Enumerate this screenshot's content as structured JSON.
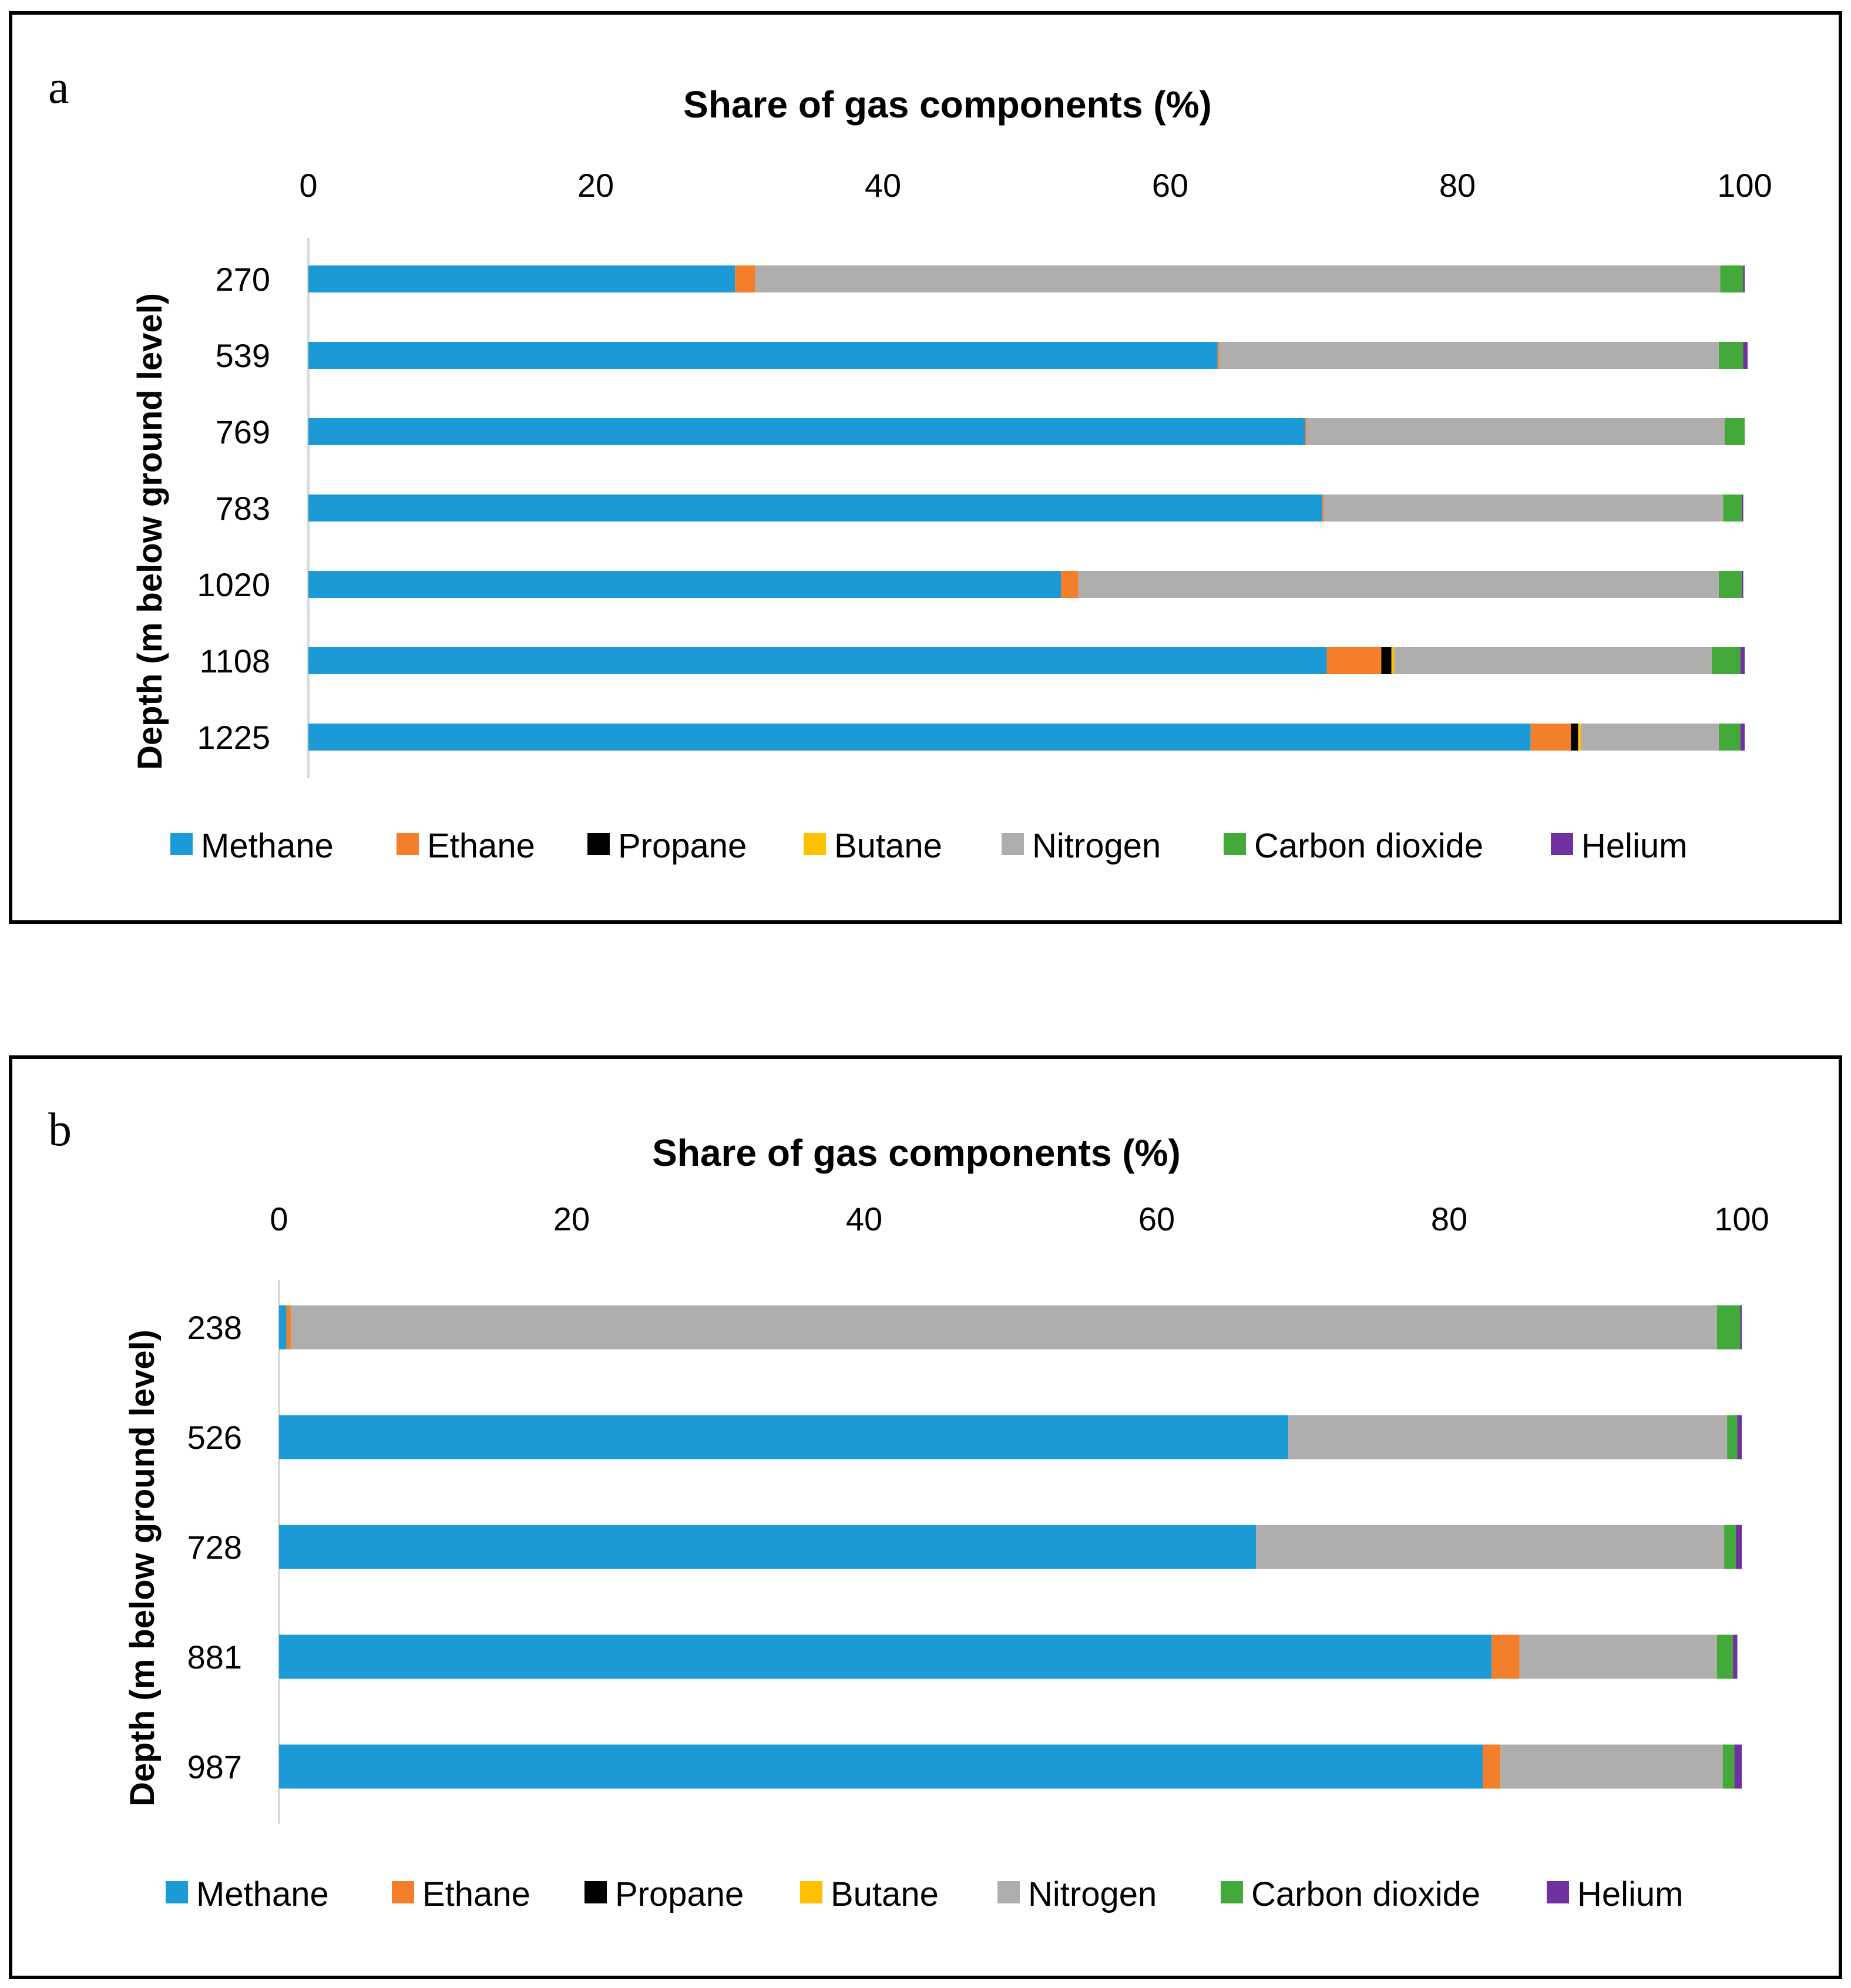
{
  "colors": {
    "Methane": "#1c9ad6",
    "Ethane": "#f47f2b",
    "Propane": "#000000",
    "Butane": "#ffc000",
    "Nitrogen": "#b0aeac",
    "Carbon dioxide": "#43a93b",
    "Helium": "#7030a0"
  },
  "chart_data": [
    {
      "type": "bar",
      "orientation": "horizontal",
      "stacked": true,
      "panel_label": "a",
      "title": "Share of gas components (%)",
      "ylabel": "Depth (m below ground level)",
      "xlim": [
        0,
        100
      ],
      "x_ticks": [
        "0",
        "20",
        "40",
        "60",
        "80",
        "100"
      ],
      "categories": [
        "270",
        "539",
        "769",
        "783",
        "1020",
        "1108",
        "1225"
      ],
      "legend_position": "bottom",
      "series": [
        {
          "name": "Methane",
          "values": [
            29.7,
            63.3,
            69.4,
            70.6,
            52.4,
            70.9,
            85.1
          ]
        },
        {
          "name": "Ethane",
          "values": [
            1.4,
            0.1,
            0.1,
            0.1,
            1.2,
            3.8,
            2.8
          ]
        },
        {
          "name": "Propane",
          "values": [
            0.0,
            0.0,
            0.0,
            0.0,
            0.0,
            0.7,
            0.5
          ]
        },
        {
          "name": "Butane",
          "values": [
            0.0,
            0.0,
            0.0,
            0.0,
            0.0,
            0.2,
            0.2
          ]
        },
        {
          "name": "Nitrogen",
          "values": [
            67.2,
            34.8,
            29.1,
            27.8,
            44.6,
            22.1,
            9.6
          ]
        },
        {
          "name": "Carbon dioxide",
          "values": [
            1.6,
            1.7,
            1.4,
            1.3,
            1.6,
            2.0,
            1.5
          ]
        },
        {
          "name": "Helium",
          "values": [
            0.1,
            0.3,
            0.0,
            0.1,
            0.1,
            0.3,
            0.3
          ]
        }
      ]
    },
    {
      "type": "bar",
      "orientation": "horizontal",
      "stacked": true,
      "panel_label": "b",
      "title": "Share of gas components (%)",
      "ylabel": "Depth (m below ground level)",
      "xlim": [
        0,
        100
      ],
      "x_ticks": [
        "0",
        "20",
        "40",
        "60",
        "80",
        "100"
      ],
      "categories": [
        "238",
        "526",
        "728",
        "881",
        "987"
      ],
      "legend_position": "bottom",
      "series": [
        {
          "name": "Methane",
          "values": [
            0.5,
            69.0,
            66.8,
            82.9,
            82.3
          ]
        },
        {
          "name": "Ethane",
          "values": [
            0.3,
            0.0,
            0.0,
            1.9,
            1.2
          ]
        },
        {
          "name": "Propane",
          "values": [
            0.0,
            0.0,
            0.0,
            0.0,
            0.0
          ]
        },
        {
          "name": "Butane",
          "values": [
            0.0,
            0.0,
            0.0,
            0.0,
            0.0
          ]
        },
        {
          "name": "Nitrogen",
          "values": [
            97.5,
            30.0,
            32.0,
            13.5,
            15.2
          ]
        },
        {
          "name": "Carbon dioxide",
          "values": [
            1.6,
            0.7,
            0.8,
            1.1,
            0.8
          ]
        },
        {
          "name": "Helium",
          "values": [
            0.1,
            0.3,
            0.4,
            0.3,
            0.5
          ]
        }
      ]
    }
  ]
}
